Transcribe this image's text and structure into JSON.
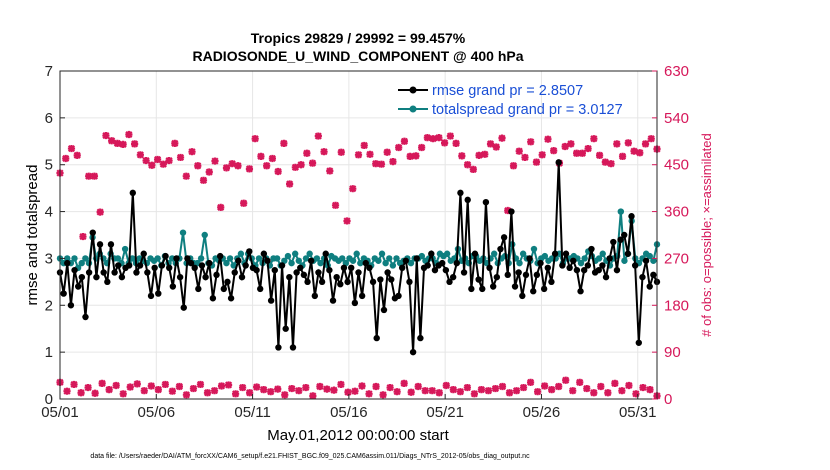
{
  "chart_data": {
    "type": "line",
    "title": "Tropics 29829 / 29992 = 99.457%",
    "subtitle": "RADIOSONDE_U_WIND_COMPONENT @ 400 hPa",
    "xlabel": "May.01,2012 00:00:00 start",
    "ylabel_left": "rmse and totalspread",
    "ylabel_right": "# of obs: o=possible; ×=assimilated",
    "footnote": "data file: /Users/raeder/DAI/ATM_forcXX/CAM6_setup/f.e21.FHIST_BGC.f09_025.CAM6assim.011/Diags_NTrS_2012-05/obs_diag_output.nc",
    "x_ticks": [
      {
        "value": 0,
        "label": "05/01"
      },
      {
        "value": 5,
        "label": "05/06"
      },
      {
        "value": 10,
        "label": "05/11"
      },
      {
        "value": 15,
        "label": "05/16"
      },
      {
        "value": 20,
        "label": "05/21"
      },
      {
        "value": 25,
        "label": "05/26"
      },
      {
        "value": 30,
        "label": "05/31"
      }
    ],
    "xlim": [
      0,
      31
    ],
    "ylim_left": [
      0,
      7
    ],
    "yticks_left": [
      "0",
      "1",
      "2",
      "3",
      "4",
      "5",
      "6",
      "7"
    ],
    "ylim_right": [
      0,
      630
    ],
    "yticks_right": [
      "0",
      "90",
      "180",
      "270",
      "360",
      "450",
      "540",
      "630"
    ],
    "grid": true,
    "legend_position": "top-right",
    "colors": {
      "rmse": "#000000",
      "spread": "#0f7f80",
      "obs": "#d6185a",
      "legend_text": "#1a4fd6"
    },
    "series": [
      {
        "name": "rmse grand pr = 2.8507",
        "axis": "left",
        "values": [
          2.7,
          2.25,
          2.9,
          2.0,
          2.75,
          2.4,
          2.6,
          1.75,
          2.7,
          3.55,
          2.6,
          3.3,
          2.7,
          2.5,
          3.3,
          2.7,
          2.85,
          2.6,
          2.8,
          2.85,
          4.4,
          2.7,
          2.85,
          3.1,
          2.7,
          2.2,
          2.8,
          2.25,
          2.85,
          3.05,
          2.8,
          2.4,
          3.0,
          2.6,
          1.95,
          3.0,
          2.9,
          2.8,
          2.35,
          2.85,
          2.6,
          2.9,
          2.15,
          2.65,
          3.05,
          2.35,
          2.5,
          2.15,
          2.7,
          2.95,
          2.6,
          2.85,
          3.15,
          2.8,
          2.75,
          2.35,
          3.1,
          2.95,
          2.1,
          2.75,
          1.1,
          2.85,
          1.5,
          2.6,
          1.1,
          2.7,
          2.8,
          2.65,
          2.5,
          2.95,
          2.2,
          2.7,
          2.5,
          3.1,
          2.75,
          2.1,
          2.6,
          2.45,
          2.8,
          2.5,
          2.8,
          2.05,
          2.7,
          2.2,
          2.9,
          2.8,
          2.5,
          1.3,
          2.55,
          1.9,
          2.7,
          2.55,
          2.15,
          2.2,
          2.8,
          2.95,
          2.5,
          1.0,
          3.0,
          1.3,
          2.8,
          2.85,
          3.1,
          2.75,
          2.85,
          2.9,
          2.75,
          2.5,
          2.6,
          2.9,
          4.4,
          2.7,
          4.25,
          2.35,
          3.1,
          2.55,
          2.35,
          4.2,
          2.8,
          2.4,
          2.6,
          3.2,
          3.45,
          2.65,
          4.0,
          2.4,
          2.7,
          2.2,
          2.65,
          3.0,
          2.3,
          2.65,
          2.9,
          2.35,
          2.8,
          2.5,
          3.1,
          5.05,
          2.85,
          3.1,
          2.8,
          2.95,
          2.75,
          2.3,
          2.75,
          2.85,
          3.2,
          2.7,
          2.75,
          2.85,
          2.6,
          3.0,
          3.35,
          2.75,
          3.4,
          3.5,
          3.1,
          3.9,
          2.85,
          1.2,
          2.6,
          2.95,
          2.4,
          2.65,
          2.5
        ]
      },
      {
        "name": "totalspread grand pr = 3.0127",
        "axis": "left",
        "values": [
          3.0,
          2.9,
          3.0,
          2.9,
          3.0,
          2.8,
          2.9,
          3.0,
          2.9,
          3.45,
          3.0,
          3.1,
          3.0,
          2.9,
          3.1,
          3.0,
          3.0,
          2.9,
          3.2,
          2.9,
          3.0,
          2.9,
          3.0,
          2.95,
          2.9,
          3.0,
          2.95,
          3.0,
          2.85,
          3.05,
          2.9,
          3.0,
          2.9,
          3.0,
          3.55,
          2.9,
          3.0,
          2.9,
          2.9,
          3.0,
          3.5,
          2.9,
          2.85,
          3.0,
          2.95,
          3.0,
          2.9,
          3.0,
          2.85,
          3.0,
          3.1,
          2.9,
          3.1,
          3.0,
          2.85,
          3.0,
          2.9,
          3.0,
          2.85,
          3.0,
          3.0,
          2.85,
          2.95,
          3.05,
          2.9,
          3.1,
          2.95,
          2.85,
          3.0,
          3.1,
          2.95,
          3.0,
          2.9,
          3.0,
          2.85,
          3.05,
          3.0,
          2.95,
          3.0,
          2.9,
          3.0,
          2.95,
          3.1,
          2.9,
          3.0,
          2.95,
          2.85,
          3.0,
          2.95,
          3.1,
          2.9,
          3.0,
          2.85,
          3.0,
          2.9,
          2.95,
          3.0,
          2.9,
          3.0,
          3.0,
          3.05,
          2.95,
          3.0,
          3.0,
          2.9,
          3.1,
          3.05,
          3.1,
          2.95,
          3.0,
          3.2,
          2.95,
          3.0,
          2.9,
          3.05,
          3.05,
          2.95,
          3.0,
          2.9,
          3.0,
          3.1,
          2.9,
          3.0,
          3.05,
          2.9,
          3.3,
          3.0,
          2.9,
          3.1,
          3.0,
          2.95,
          3.2,
          2.9,
          3.0,
          3.05,
          2.95,
          3.0,
          3.0,
          3.1,
          2.9,
          3.0,
          3.0,
          3.05,
          3.0,
          2.9,
          3.0,
          3.15,
          3.05,
          2.95,
          3.0,
          3.1,
          2.95,
          2.85,
          3.0,
          3.05,
          4.0,
          2.95,
          3.1,
          3.8,
          3.0,
          2.9,
          3.0,
          3.1,
          3.05,
          2.95,
          3.3
        ]
      },
      {
        "name": "possible obs",
        "axis": "right",
        "marker": "plus",
        "values": [
          32,
          15,
          28,
          12,
          22,
          11,
          30,
          18,
          26,
          10,
          23,
          29,
          16,
          25,
          18,
          28,
          15,
          24,
          8,
          20,
          28,
          12,
          16,
          25,
          27,
          10,
          22,
          12,
          23,
          18,
          14,
          19,
          8,
          20,
          16,
          22,
          6,
          24,
          19,
          17,
          28,
          13,
          15,
          25,
          10,
          24,
          8,
          22,
          14,
          30,
          13,
          24,
          16,
          16,
          12,
          26,
          18,
          14,
          22,
          10,
          18,
          16,
          20,
          24,
          12,
          16,
          22,
          32,
          14,
          25,
          18,
          24,
          36,
          16,
          32,
          20,
          12,
          24,
          12,
          30,
          16,
          26,
          10,
          22,
          18,
          6
        ]
      },
      {
        "name": "assimilated obs",
        "axis": "right",
        "marker": "x",
        "values": [
          32,
          15,
          28,
          12,
          22,
          11,
          30,
          18,
          26,
          10,
          23,
          29,
          16,
          25,
          18,
          28,
          15,
          24,
          8,
          20,
          28,
          12,
          16,
          25,
          27,
          10,
          22,
          12,
          23,
          18,
          14,
          19,
          8,
          20,
          16,
          22,
          6,
          24,
          19,
          17,
          28,
          13,
          15,
          25,
          10,
          24,
          8,
          22,
          14,
          30,
          13,
          24,
          16,
          16,
          12,
          26,
          18,
          14,
          22,
          10,
          18,
          16,
          20,
          24,
          12,
          16,
          22,
          32,
          14,
          25,
          18,
          24,
          36,
          16,
          32,
          20,
          12,
          24,
          12,
          30,
          16,
          26,
          10,
          22,
          18,
          6
        ]
      }
    ],
    "obs_top_values": [
      434,
      462,
      481,
      468,
      312,
      428,
      428,
      359,
      506,
      496,
      491,
      489,
      508,
      490,
      469,
      458,
      449,
      460,
      451,
      458,
      491,
      464,
      428,
      475,
      448,
      420,
      436,
      457,
      368,
      444,
      452,
      448,
      376,
      442,
      500,
      466,
      448,
      462,
      437,
      491,
      413,
      445,
      450,
      472,
      453,
      505,
      475,
      438,
      372,
      474,
      342,
      404,
      469,
      487,
      470,
      452,
      451,
      474,
      456,
      483,
      495,
      466,
      467,
      483,
      502,
      500,
      502,
      492,
      505,
      491,
      467,
      450,
      441,
      468,
      470,
      490,
      484,
      501,
      362,
      448,
      476,
      464,
      494,
      455,
      469,
      499,
      477,
      453,
      485,
      490,
      472,
      472,
      481,
      500,
      468,
      455,
      452,
      490,
      466,
      492,
      476,
      473,
      490,
      500,
      480
    ],
    "legend": [
      {
        "label": "rmse grand pr = 2.8507",
        "series": "rmse"
      },
      {
        "label": "totalspread grand pr = 3.0127",
        "series": "spread"
      }
    ]
  }
}
